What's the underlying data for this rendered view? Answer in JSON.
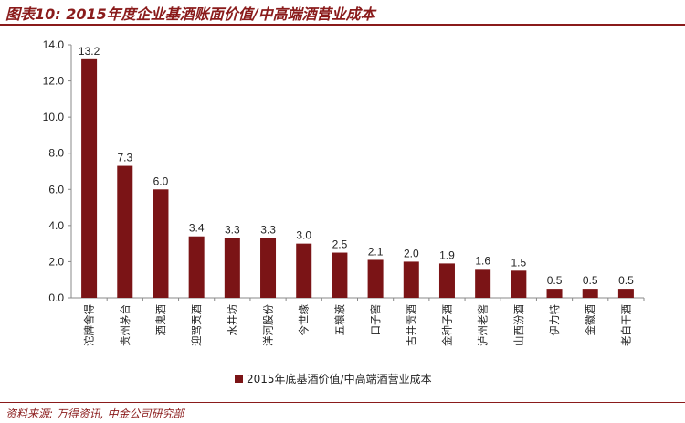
{
  "header": {
    "title": "图表10: 2015年度企业基酒账面价值/中高端酒营业成本"
  },
  "footer": {
    "source": "资料来源: 万得资讯, 中金公司研究部"
  },
  "colors": {
    "bar": "#7B1416",
    "accent": "#8a1b1b",
    "axis": "#888888"
  },
  "chart_data": {
    "type": "bar",
    "title": "",
    "xlabel": "",
    "ylabel": "",
    "ylim": [
      0,
      14
    ],
    "yticks": [
      "0.0",
      "2.0",
      "4.0",
      "6.0",
      "8.0",
      "10.0",
      "12.0",
      "14.0"
    ],
    "grid": false,
    "legend_position": "bottom",
    "categories": [
      "沱牌舍得",
      "贵州茅台",
      "酒鬼酒",
      "迎驾贡酒",
      "水井坊",
      "洋河股份",
      "今世缘",
      "五粮液",
      "口子窖",
      "古井贡酒",
      "金种子酒",
      "泸州老窖",
      "山西汾酒",
      "伊力特",
      "金徽酒",
      "老白干酒"
    ],
    "series": [
      {
        "name": "2015年底基酒价值/中高端酒营业成本",
        "values": [
          13.2,
          7.3,
          6.0,
          3.4,
          3.3,
          3.3,
          3.0,
          2.5,
          2.1,
          2.0,
          1.9,
          1.6,
          1.5,
          0.5,
          0.5,
          0.5
        ],
        "labels": [
          "13.2",
          "7.3",
          "6.0",
          "3.4",
          "3.3",
          "3.3",
          "3.0",
          "2.5",
          "2.1",
          "2.0",
          "1.9",
          "1.6",
          "1.5",
          "0.5",
          "0.5",
          "0.5"
        ]
      }
    ]
  }
}
